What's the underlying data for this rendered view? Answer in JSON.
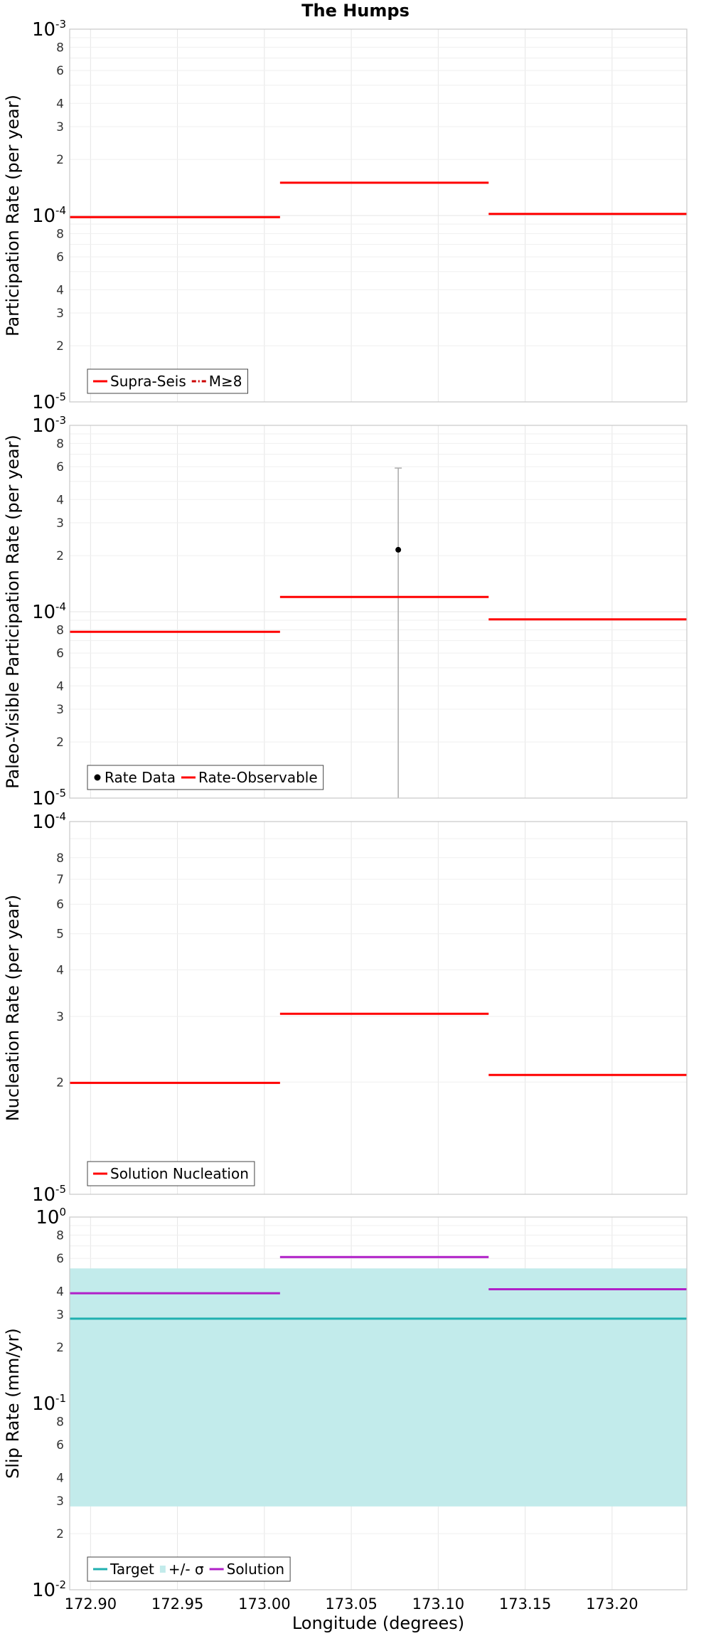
{
  "chart_data": {
    "title": "The Humps",
    "xlabel": "Longitude (degrees)",
    "xlim": [
      172.888,
      173.243
    ],
    "xticks": [
      "172.90",
      "172.95",
      "173.00",
      "173.05",
      "173.10",
      "173.15",
      "173.20"
    ],
    "xtick_values": [
      172.9,
      172.95,
      173.0,
      173.05,
      173.1,
      173.15,
      173.2
    ],
    "panels": [
      {
        "id": "participation",
        "type": "line",
        "ylabel": "Participation Rate (per year)",
        "yscale": "log",
        "ylim_exp": [
          -5,
          -3
        ],
        "series": [
          {
            "name": "Supra-Seis",
            "color": "#ff0000",
            "segments": [
              {
                "x": [
                  172.888,
                  173.009
                ],
                "y": 9.8e-05
              },
              {
                "x": [
                  173.009,
                  173.129
                ],
                "y": 0.00015
              },
              {
                "x": [
                  173.129,
                  173.243
                ],
                "y": 0.000102
              }
            ]
          }
        ],
        "legend": [
          {
            "label": "Supra-Seis",
            "style": "solid",
            "color": "#ff0000"
          },
          {
            "label": "M≥8",
            "style": "dashdot",
            "color": "#cc0000"
          }
        ],
        "legend_position": "bottom-left"
      },
      {
        "id": "paleo",
        "type": "line",
        "ylabel": "Paleo-Visible Participation Rate (per year)",
        "yscale": "log",
        "ylim_exp": [
          -5,
          -3
        ],
        "series": [
          {
            "name": "Rate-Observable",
            "color": "#ff0000",
            "segments": [
              {
                "x": [
                  172.888,
                  173.009
                ],
                "y": 7.8e-05
              },
              {
                "x": [
                  173.009,
                  173.129
                ],
                "y": 0.00012
              },
              {
                "x": [
                  173.129,
                  173.243
                ],
                "y": 9.1e-05
              }
            ]
          }
        ],
        "points": [
          {
            "name": "Rate Data",
            "x": 173.077,
            "y": 0.000215,
            "err_low": 1e-05,
            "err_high": 0.00059
          }
        ],
        "legend": [
          {
            "label": "Rate Data",
            "style": "dot",
            "color": "#000000"
          },
          {
            "label": "Rate-Observable",
            "style": "solid",
            "color": "#ff0000"
          }
        ],
        "legend_position": "bottom-left"
      },
      {
        "id": "nucleation",
        "type": "line",
        "ylabel": "Nucleation Rate (per year)",
        "yscale": "log",
        "ylim_exp": [
          -5,
          -4
        ],
        "series": [
          {
            "name": "Solution Nucleation",
            "color": "#ff0000",
            "segments": [
              {
                "x": [
                  172.888,
                  173.009
                ],
                "y": 1.99e-05
              },
              {
                "x": [
                  173.009,
                  173.129
                ],
                "y": 3.05e-05
              },
              {
                "x": [
                  173.129,
                  173.243
                ],
                "y": 2.09e-05
              }
            ]
          }
        ],
        "legend": [
          {
            "label": "Solution Nucleation",
            "style": "solid",
            "color": "#ff0000"
          }
        ],
        "legend_position": "bottom-left"
      },
      {
        "id": "slip",
        "type": "line",
        "ylabel": "Slip Rate (mm/yr)",
        "yscale": "log",
        "ylim_exp": [
          -2,
          0
        ],
        "band": {
          "name": "+/- σ",
          "y0": 0.028,
          "y1": 0.53,
          "color": "#c2ebeb"
        },
        "series": [
          {
            "name": "Target",
            "color": "#20b0b0",
            "segments": [
              {
                "x": [
                  172.888,
                  173.243
                ],
                "y": 0.285
              }
            ]
          },
          {
            "name": "Solution",
            "color": "#b020c8",
            "segments": [
              {
                "x": [
                  172.888,
                  173.009
                ],
                "y": 0.39
              },
              {
                "x": [
                  173.009,
                  173.129
                ],
                "y": 0.61
              },
              {
                "x": [
                  173.129,
                  173.243
                ],
                "y": 0.41
              }
            ]
          }
        ],
        "legend": [
          {
            "label": "Target",
            "style": "solid",
            "color": "#20b0b0"
          },
          {
            "label": "+/- σ",
            "style": "box",
            "color": "#c2ebeb"
          },
          {
            "label": "Solution",
            "style": "solid",
            "color": "#b020c8"
          }
        ],
        "legend_position": "bottom-left"
      }
    ]
  }
}
